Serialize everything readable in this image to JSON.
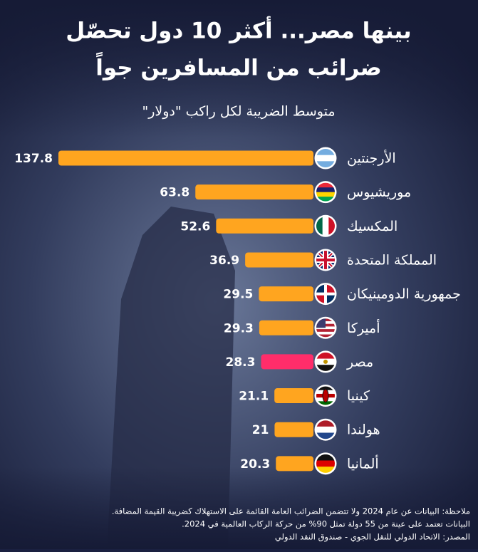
{
  "chart_data": {
    "type": "bar",
    "orientation": "horizontal",
    "title": [
      "بينها مصر... أكثر 10 دول تحصّل",
      "ضرائب من المسافرين جواً"
    ],
    "subtitle": "متوسط الضريبة لكل راكب \"دولار\"",
    "categories": [
      "الأرجنتين",
      "موريشيوس",
      "المكسيك",
      "المملكة المتحدة",
      "جمهورية الدومينيكان",
      "أميركا",
      "مصر",
      "كينيا",
      "هولندا",
      "ألمانيا"
    ],
    "values": [
      137.8,
      63.8,
      52.6,
      36.9,
      29.5,
      29.3,
      28.3,
      21.1,
      21,
      20.3
    ],
    "colors": [
      "#ffa51f",
      "#ffa51f",
      "#ffa51f",
      "#ffa51f",
      "#ffa51f",
      "#ffa51f",
      "#ff2d6a",
      "#ffa51f",
      "#ffa51f",
      "#ffa51f"
    ],
    "notes": [
      "ملاحظة: البيانات عن عام 2024 ولا تتضمن الضرائب العامة القائمة على الاستهلاك كضريبة القيمة المضافة.",
      "البيانات تعتمد على عينة من 55 دولة تمثل 90% من حركة الركاب العالمية في 2024.",
      "المصدر: الاتحاد الدولي للنقل الجوي - صندوق النقد الدولي"
    ]
  }
}
